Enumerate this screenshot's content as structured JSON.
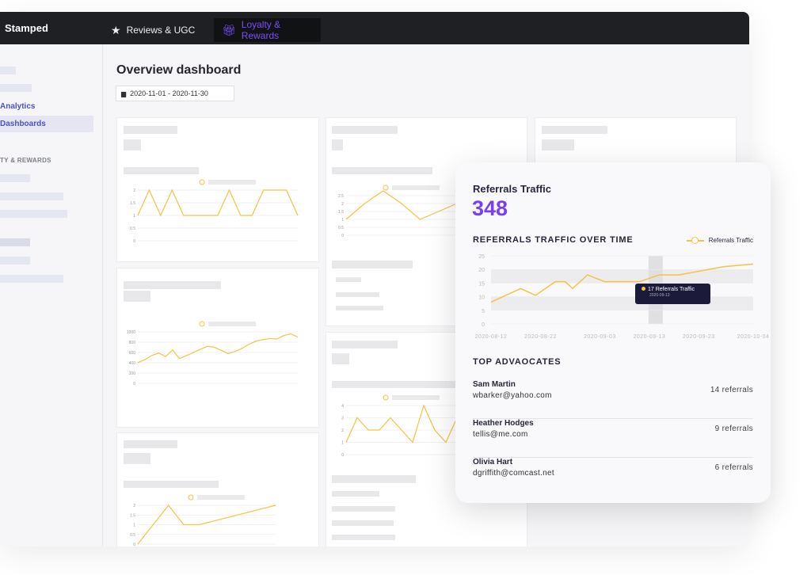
{
  "topbar": {
    "logo": "Stamped",
    "tabs": [
      {
        "label": "Reviews & UGC",
        "icon": "star-icon"
      },
      {
        "label": "Loyalty & Rewards",
        "icon": "gift-icon"
      }
    ]
  },
  "sidebar": {
    "items": [
      "Analytics",
      "Dashboards"
    ],
    "section": "TY & REWARDS"
  },
  "main": {
    "title": "Overview dashboard",
    "date_range": "2020-11-01 - 2020-11-30"
  },
  "colors": {
    "accent": "#7b3ff2",
    "line": "#f5c242",
    "tooltip": "#1b1a3a"
  },
  "mini_charts": [
    {
      "yticks": [
        "0",
        "0.5",
        "1",
        "1.5",
        "2"
      ],
      "ymax": 2,
      "values": [
        1,
        2,
        1,
        2,
        1,
        1,
        1,
        1,
        2,
        1,
        1,
        2,
        2,
        2,
        1
      ]
    },
    {
      "yticks": [
        "0",
        "200",
        "400",
        "600",
        "800",
        "1000"
      ],
      "ymax": 1000,
      "values": [
        400,
        460,
        540,
        590,
        520,
        650,
        480,
        540,
        600,
        660,
        720,
        700,
        640,
        580,
        620,
        680,
        760,
        820,
        850,
        870,
        860,
        930,
        960,
        900
      ]
    },
    {
      "yticks": [
        "0",
        "0.5",
        "1",
        "1.5",
        "2"
      ],
      "ymax": 2,
      "values": [
        0,
        1,
        2,
        1,
        1,
        1.2,
        1.4,
        1.6,
        1.8,
        2
      ]
    },
    {
      "yticks": [
        "0",
        "0.5",
        "1",
        "1.5",
        "2",
        "2.5"
      ],
      "ymax": 2.5,
      "values": [
        1,
        2,
        2.8,
        2,
        1,
        1.5,
        2
      ]
    },
    {
      "yticks": [
        "0",
        "1",
        "2",
        "3",
        "4"
      ],
      "ymax": 4,
      "values": [
        1,
        3,
        2,
        2,
        3,
        2,
        1,
        4,
        2,
        1,
        3
      ]
    }
  ],
  "overlay": {
    "title": "Referrals Traffic",
    "total": "348",
    "chart_title": "REFERRALS TRAFFIC OVER TIME",
    "tooltip": {
      "value": "17 Referrals Traffic",
      "date": "2020-09-13"
    },
    "advocates_title": "TOP ADVAOCATES",
    "advocates": [
      {
        "name": "Sam Martin",
        "email": "wbarker@yahoo.com",
        "referrals": "14 referrals"
      },
      {
        "name": "Heather Hodges",
        "email": "tellis@me.com",
        "referrals": "9 referrals"
      },
      {
        "name": "Olivia Hart",
        "email": "dgriffith@comcast.net",
        "referrals": "6 referrals"
      }
    ]
  },
  "chart_data": {
    "type": "line",
    "title": "REFERRALS TRAFFIC OVER TIME",
    "xlabel": "",
    "ylabel": "",
    "legend": "top-right",
    "series_name": "Referrals Traffic",
    "x_days_since_2020_08_12": [
      0,
      6,
      9,
      13,
      15,
      16.5,
      19.5,
      23,
      30,
      34,
      38,
      47,
      53
    ],
    "values": [
      8,
      13,
      10.5,
      15.5,
      15.5,
      13,
      18,
      15.5,
      15.5,
      18,
      18,
      21,
      22
    ],
    "xlim": [
      0,
      53
    ],
    "ylim": [
      0,
      25
    ],
    "yticks": [
      "0",
      "5",
      "10",
      "15",
      "20",
      "25"
    ],
    "xticks": [
      {
        "label": "2020-08-12",
        "day": 0
      },
      {
        "label": "2020-08-22",
        "day": 10
      },
      {
        "label": "2020-09-03",
        "day": 22
      },
      {
        "label": "2020-09-13",
        "day": 32
      },
      {
        "label": "2020-09-23",
        "day": 42
      },
      {
        "label": "2020-10-04",
        "day": 53
      }
    ],
    "highlight_day": 32
  }
}
